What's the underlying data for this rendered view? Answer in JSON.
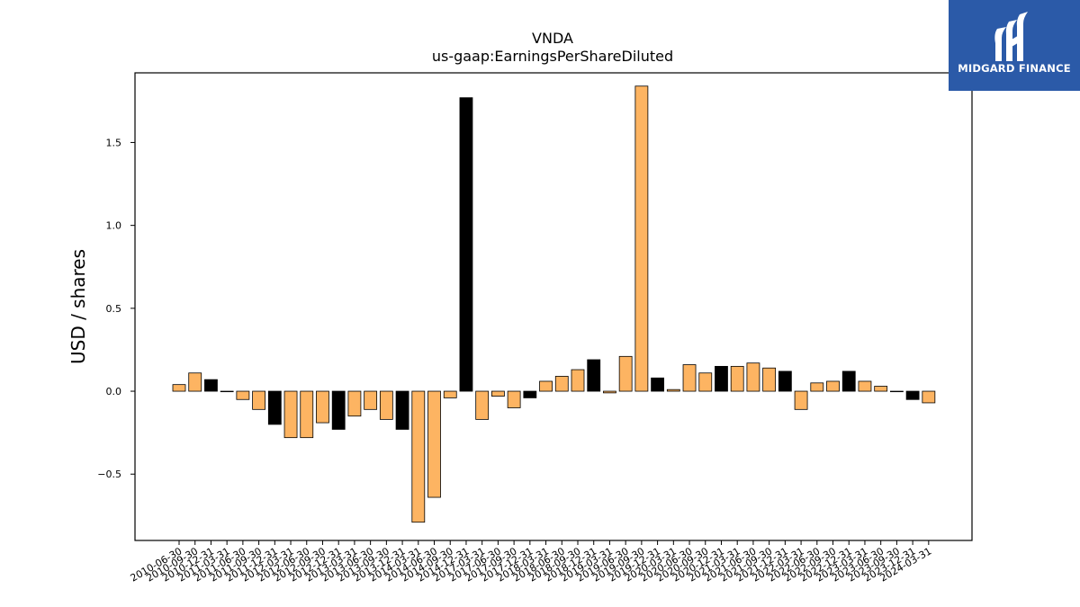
{
  "chart_data": {
    "type": "bar",
    "title": "VNDA",
    "subtitle": "us-gaap:EarningsPerShareDiluted",
    "xlabel": "",
    "ylabel": "USD / shares",
    "ylim": [
      -0.9,
      1.92
    ],
    "yticks": [
      -0.5,
      0.0,
      0.5,
      1.0,
      1.5
    ],
    "ytick_labels": [
      "−0.5",
      "0.0",
      "0.5",
      "1.0",
      "1.5"
    ],
    "categories": [
      "2010-06-30",
      "2010-09-30",
      "2010-12-31",
      "2011-03-31",
      "2011-06-30",
      "2011-09-30",
      "2011-12-31",
      "2012-03-31",
      "2012-06-30",
      "2012-09-30",
      "2012-12-31",
      "2013-03-31",
      "2013-06-30",
      "2013-09-30",
      "2013-12-31",
      "2014-03-31",
      "2014-06-30",
      "2014-09-30",
      "2014-12-31",
      "2017-03-31",
      "2017-06-30",
      "2017-09-30",
      "2017-12-31",
      "2018-03-31",
      "2018-06-30",
      "2018-09-30",
      "2018-12-31",
      "2019-03-31",
      "2019-06-30",
      "2019-09-30",
      "2019-12-31",
      "2020-03-31",
      "2020-06-30",
      "2020-09-30",
      "2020-12-31",
      "2021-03-31",
      "2021-06-30",
      "2021-09-30",
      "2021-12-31",
      "2022-03-31",
      "2022-06-30",
      "2022-09-30",
      "2022-12-31",
      "2023-03-31",
      "2023-06-30",
      "2023-09-30",
      "2023-12-31",
      "2024-03-31"
    ],
    "values": [
      0.04,
      0.11,
      0.07,
      0.0,
      -0.05,
      -0.11,
      -0.2,
      -0.28,
      -0.28,
      -0.19,
      -0.23,
      -0.15,
      -0.11,
      -0.17,
      -0.23,
      -0.79,
      -0.64,
      -0.04,
      1.77,
      -0.17,
      -0.03,
      -0.1,
      -0.04,
      0.06,
      0.09,
      0.13,
      0.19,
      -0.01,
      0.21,
      1.84,
      0.08,
      0.01,
      0.16,
      0.11,
      0.15,
      0.15,
      0.17,
      0.14,
      0.12,
      -0.11,
      0.05,
      0.06,
      0.12,
      0.06,
      0.03,
      0.0,
      -0.05,
      -0.07
    ],
    "colors": [
      "orange",
      "orange",
      "black",
      "orange",
      "orange",
      "orange",
      "black",
      "orange",
      "orange",
      "orange",
      "black",
      "orange",
      "orange",
      "orange",
      "black",
      "orange",
      "orange",
      "orange",
      "black",
      "orange",
      "orange",
      "orange",
      "black",
      "orange",
      "orange",
      "orange",
      "black",
      "orange",
      "orange",
      "orange",
      "black",
      "orange",
      "orange",
      "orange",
      "black",
      "orange",
      "orange",
      "orange",
      "black",
      "orange",
      "orange",
      "orange",
      "black",
      "orange",
      "orange",
      "orange",
      "black",
      "orange"
    ],
    "palette": {
      "orange": "#fdb462",
      "black": "#000000",
      "edge": "#000000"
    },
    "grid": false,
    "legend": "none"
  },
  "brand": {
    "name": "MIDGARD FINANCE",
    "background": "#2b5aa8",
    "foreground": "#ffffff"
  }
}
